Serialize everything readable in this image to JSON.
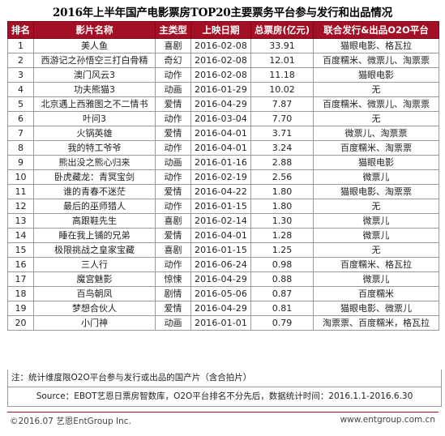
{
  "title": "2016年上半年国产电影票房TOP20主要票务平台参与发行和出品情况",
  "colors": {
    "header_bg": "#a30f24",
    "header_text": "#ffffff",
    "footer_line": "#a30f24"
  },
  "table": {
    "headers": [
      "排名",
      "影片名称",
      "主类型",
      "上映日期",
      "总票房(亿元)",
      "联合发行&出品O2O平台"
    ],
    "rows": [
      [
        "1",
        "美人鱼",
        "喜剧",
        "2016-02-08",
        "33.91",
        "猫眼电影、格瓦拉"
      ],
      [
        "2",
        "西游记之孙悟空三打白骨精",
        "奇幻",
        "2016-02-08",
        "12.01",
        "百度糯米、微票儿、淘票票"
      ],
      [
        "3",
        "澳门风云3",
        "动作",
        "2016-02-08",
        "11.18",
        "猫眼电影"
      ],
      [
        "4",
        "功夫熊猫3",
        "动画",
        "2016-01-29",
        "10.02",
        "无"
      ],
      [
        "5",
        "北京遇上西雅图之不二情书",
        "爱情",
        "2016-04-29",
        "7.87",
        "百度糯米、微票儿、淘票票"
      ],
      [
        "6",
        "叶问3",
        "动作",
        "2016-03-04",
        "7.70",
        "无"
      ],
      [
        "7",
        "火锅英雄",
        "爱情",
        "2016-04-01",
        "3.71",
        "微票儿、淘票票"
      ],
      [
        "8",
        "我的特工爷爷",
        "动作",
        "2016-04-01",
        "3.24",
        "百度糯米、淘票票"
      ],
      [
        "9",
        "熊出没之熊心归来",
        "动画",
        "2016-01-16",
        "2.88",
        "猫眼电影"
      ],
      [
        "10",
        "卧虎藏龙：青冥宝剑",
        "动作",
        "2016-02-19",
        "2.56",
        "微票儿"
      ],
      [
        "11",
        "谁的青春不迷茫",
        "爱情",
        "2016-04-22",
        "1.80",
        "猫眼电影、淘票票"
      ],
      [
        "12",
        "最后的巫师猎人",
        "动作",
        "2016-01-15",
        "1.80",
        "无"
      ],
      [
        "13",
        "高跟鞋先生",
        "喜剧",
        "2016-02-14",
        "1.30",
        "微票儿"
      ],
      [
        "14",
        "睡在我上铺的兄弟",
        "爱情",
        "2016-04-01",
        "1.28",
        "微票儿"
      ],
      [
        "15",
        "极限挑战之皇家宝藏",
        "喜剧",
        "2016-01-15",
        "1.25",
        "无"
      ],
      [
        "16",
        "三人行",
        "动作",
        "2016-06-24",
        "0.98",
        "百度糯米、格瓦拉"
      ],
      [
        "17",
        "魔宫魅影",
        "惊悚",
        "2016-04-29",
        "0.88",
        "微票儿"
      ],
      [
        "18",
        "百鸟朝凤",
        "剧情",
        "2016-05-06",
        "0.87",
        "百度糯米"
      ],
      [
        "19",
        "梦想合伙人",
        "爱情",
        "2016-04-29",
        "0.81",
        "猫眼电影、微票儿"
      ],
      [
        "20",
        "小门神",
        "动画",
        "2016-01-01",
        "0.79",
        "淘票票、百度糯米，格瓦拉"
      ]
    ]
  },
  "note": "注：统计维度限O2O平台参与发行或出品的国产片（含合拍片）",
  "source": "Source：EBOT艺恩日票房智数库，O2O平台排名不分先后，数据统计时间：2016.1.1-2016.6.30",
  "footer": {
    "left": "©2016.07 艺恩EntGroup Inc.",
    "right": "www.entgroup.com.cn"
  },
  "watermark": "艺恩"
}
